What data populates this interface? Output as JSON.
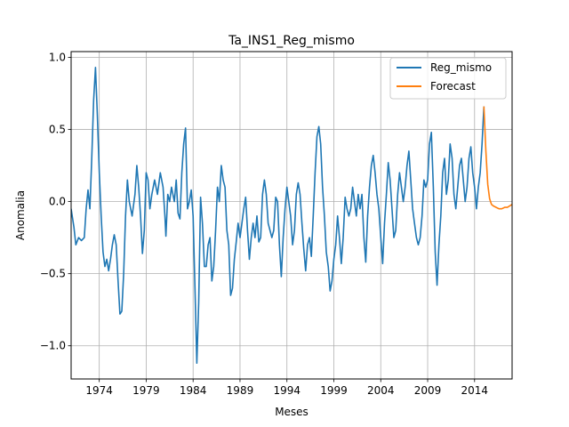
{
  "chart_data": {
    "type": "line",
    "title": "Ta_INS1_Reg_mismo",
    "xlabel": "Meses",
    "ylabel": "Anomalia",
    "xlim": [
      1971.0,
      2018.0
    ],
    "ylim": [
      -1.23,
      1.04
    ],
    "x_ticks": [
      1974,
      1979,
      1984,
      1989,
      1994,
      1999,
      2004,
      2009,
      2014
    ],
    "x_tick_labels": [
      "1974",
      "1979",
      "1984",
      "1989",
      "1994",
      "1999",
      "2004",
      "2009",
      "2014"
    ],
    "y_ticks": [
      -1.0,
      -0.5,
      0.0,
      0.5,
      1.0
    ],
    "y_tick_labels": [
      "−1.0",
      "−0.5",
      "0.0",
      "0.5",
      "1.0"
    ],
    "grid": true,
    "legend_position": "top-right",
    "series": [
      {
        "name": "Reg_mismo",
        "color": "#1f77b4",
        "points": [
          [
            1971.0,
            -0.05
          ],
          [
            1971.3,
            -0.18
          ],
          [
            1971.5,
            -0.3
          ],
          [
            1971.8,
            -0.25
          ],
          [
            1972.1,
            -0.27
          ],
          [
            1972.4,
            -0.25
          ],
          [
            1972.6,
            -0.05
          ],
          [
            1972.8,
            0.08
          ],
          [
            1973.0,
            -0.05
          ],
          [
            1973.2,
            0.3
          ],
          [
            1973.4,
            0.7
          ],
          [
            1973.6,
            0.93
          ],
          [
            1973.8,
            0.6
          ],
          [
            1974.0,
            0.2
          ],
          [
            1974.2,
            -0.1
          ],
          [
            1974.4,
            -0.35
          ],
          [
            1974.6,
            -0.45
          ],
          [
            1974.8,
            -0.4
          ],
          [
            1975.0,
            -0.48
          ],
          [
            1975.2,
            -0.4
          ],
          [
            1975.4,
            -0.3
          ],
          [
            1975.6,
            -0.23
          ],
          [
            1975.8,
            -0.3
          ],
          [
            1976.0,
            -0.55
          ],
          [
            1976.2,
            -0.78
          ],
          [
            1976.4,
            -0.76
          ],
          [
            1976.6,
            -0.5
          ],
          [
            1976.8,
            -0.1
          ],
          [
            1977.0,
            0.15
          ],
          [
            1977.2,
            0.0
          ],
          [
            1977.5,
            -0.1
          ],
          [
            1977.8,
            0.05
          ],
          [
            1978.0,
            0.25
          ],
          [
            1978.2,
            0.1
          ],
          [
            1978.4,
            -0.1
          ],
          [
            1978.6,
            -0.36
          ],
          [
            1978.8,
            -0.2
          ],
          [
            1979.0,
            0.2
          ],
          [
            1979.2,
            0.15
          ],
          [
            1979.4,
            -0.05
          ],
          [
            1979.6,
            0.05
          ],
          [
            1979.9,
            0.15
          ],
          [
            1980.2,
            0.05
          ],
          [
            1980.5,
            0.2
          ],
          [
            1980.8,
            0.1
          ],
          [
            1981.0,
            -0.1
          ],
          [
            1981.1,
            -0.24
          ],
          [
            1981.3,
            0.05
          ],
          [
            1981.5,
            0.0
          ],
          [
            1981.7,
            0.1
          ],
          [
            1982.0,
            0.0
          ],
          [
            1982.2,
            0.15
          ],
          [
            1982.4,
            -0.08
          ],
          [
            1982.6,
            -0.12
          ],
          [
            1982.8,
            0.2
          ],
          [
            1983.0,
            0.4
          ],
          [
            1983.2,
            0.51
          ],
          [
            1983.4,
            -0.05
          ],
          [
            1983.6,
            0.0
          ],
          [
            1983.8,
            0.08
          ],
          [
            1984.0,
            -0.1
          ],
          [
            1984.2,
            -0.6
          ],
          [
            1984.4,
            -1.12
          ],
          [
            1984.6,
            -0.7
          ],
          [
            1984.8,
            0.03
          ],
          [
            1985.0,
            -0.15
          ],
          [
            1985.2,
            -0.45
          ],
          [
            1985.4,
            -0.45
          ],
          [
            1985.6,
            -0.3
          ],
          [
            1985.8,
            -0.25
          ],
          [
            1986.0,
            -0.55
          ],
          [
            1986.2,
            -0.45
          ],
          [
            1986.4,
            -0.2
          ],
          [
            1986.6,
            0.1
          ],
          [
            1986.8,
            0.0
          ],
          [
            1987.0,
            0.25
          ],
          [
            1987.2,
            0.15
          ],
          [
            1987.4,
            0.1
          ],
          [
            1987.6,
            -0.2
          ],
          [
            1987.8,
            -0.3
          ],
          [
            1988.0,
            -0.65
          ],
          [
            1988.2,
            -0.6
          ],
          [
            1988.4,
            -0.4
          ],
          [
            1988.6,
            -0.28
          ],
          [
            1988.8,
            -0.15
          ],
          [
            1989.0,
            -0.25
          ],
          [
            1989.2,
            -0.15
          ],
          [
            1989.4,
            -0.05
          ],
          [
            1989.6,
            0.03
          ],
          [
            1989.8,
            -0.2
          ],
          [
            1990.0,
            -0.4
          ],
          [
            1990.2,
            -0.25
          ],
          [
            1990.4,
            -0.15
          ],
          [
            1990.6,
            -0.25
          ],
          [
            1990.8,
            -0.1
          ],
          [
            1991.0,
            -0.28
          ],
          [
            1991.2,
            -0.25
          ],
          [
            1991.4,
            0.05
          ],
          [
            1991.6,
            0.15
          ],
          [
            1991.8,
            0.05
          ],
          [
            1992.0,
            -0.15
          ],
          [
            1992.2,
            -0.2
          ],
          [
            1992.4,
            -0.25
          ],
          [
            1992.6,
            -0.2
          ],
          [
            1992.8,
            0.03
          ],
          [
            1993.0,
            0.0
          ],
          [
            1993.2,
            -0.3
          ],
          [
            1993.4,
            -0.52
          ],
          [
            1993.6,
            -0.25
          ],
          [
            1993.8,
            -0.05
          ],
          [
            1994.0,
            0.1
          ],
          [
            1994.2,
            0.0
          ],
          [
            1994.4,
            -0.1
          ],
          [
            1994.6,
            -0.3
          ],
          [
            1994.8,
            -0.2
          ],
          [
            1995.0,
            0.05
          ],
          [
            1995.2,
            0.13
          ],
          [
            1995.4,
            0.05
          ],
          [
            1995.6,
            -0.15
          ],
          [
            1995.8,
            -0.33
          ],
          [
            1996.0,
            -0.48
          ],
          [
            1996.2,
            -0.3
          ],
          [
            1996.4,
            -0.25
          ],
          [
            1996.6,
            -0.38
          ],
          [
            1996.8,
            -0.1
          ],
          [
            1997.0,
            0.2
          ],
          [
            1997.2,
            0.45
          ],
          [
            1997.4,
            0.52
          ],
          [
            1997.6,
            0.4
          ],
          [
            1997.8,
            0.1
          ],
          [
            1998.0,
            -0.1
          ],
          [
            1998.2,
            -0.35
          ],
          [
            1998.4,
            -0.45
          ],
          [
            1998.6,
            -0.62
          ],
          [
            1998.8,
            -0.55
          ],
          [
            1999.0,
            -0.4
          ],
          [
            1999.2,
            -0.3
          ],
          [
            1999.4,
            -0.1
          ],
          [
            1999.6,
            -0.25
          ],
          [
            1999.8,
            -0.43
          ],
          [
            2000.0,
            -0.25
          ],
          [
            2000.2,
            0.03
          ],
          [
            2000.4,
            -0.05
          ],
          [
            2000.6,
            -0.1
          ],
          [
            2000.8,
            -0.05
          ],
          [
            2001.0,
            0.1
          ],
          [
            2001.2,
            0.0
          ],
          [
            2001.4,
            -0.1
          ],
          [
            2001.6,
            0.05
          ],
          [
            2001.8,
            -0.05
          ],
          [
            2002.0,
            0.05
          ],
          [
            2002.2,
            -0.25
          ],
          [
            2002.4,
            -0.42
          ],
          [
            2002.6,
            -0.1
          ],
          [
            2002.8,
            0.1
          ],
          [
            2003.0,
            0.25
          ],
          [
            2003.2,
            0.32
          ],
          [
            2003.4,
            0.2
          ],
          [
            2003.6,
            0.05
          ],
          [
            2003.8,
            -0.05
          ],
          [
            2004.0,
            -0.25
          ],
          [
            2004.2,
            -0.43
          ],
          [
            2004.4,
            -0.15
          ],
          [
            2004.6,
            0.05
          ],
          [
            2004.8,
            0.27
          ],
          [
            2005.0,
            0.15
          ],
          [
            2005.2,
            -0.05
          ],
          [
            2005.4,
            -0.25
          ],
          [
            2005.6,
            -0.2
          ],
          [
            2005.8,
            0.05
          ],
          [
            2006.0,
            0.2
          ],
          [
            2006.2,
            0.1
          ],
          [
            2006.4,
            0.0
          ],
          [
            2006.6,
            0.1
          ],
          [
            2006.8,
            0.25
          ],
          [
            2007.0,
            0.35
          ],
          [
            2007.2,
            0.15
          ],
          [
            2007.4,
            -0.05
          ],
          [
            2007.6,
            -0.15
          ],
          [
            2007.8,
            -0.25
          ],
          [
            2008.0,
            -0.3
          ],
          [
            2008.2,
            -0.25
          ],
          [
            2008.4,
            -0.1
          ],
          [
            2008.6,
            0.15
          ],
          [
            2008.8,
            0.1
          ],
          [
            2009.0,
            0.15
          ],
          [
            2009.2,
            0.4
          ],
          [
            2009.4,
            0.48
          ],
          [
            2009.6,
            0.1
          ],
          [
            2009.8,
            -0.35
          ],
          [
            2010.0,
            -0.58
          ],
          [
            2010.2,
            -0.3
          ],
          [
            2010.4,
            -0.1
          ],
          [
            2010.6,
            0.2
          ],
          [
            2010.8,
            0.3
          ],
          [
            2011.0,
            0.05
          ],
          [
            2011.2,
            0.15
          ],
          [
            2011.4,
            0.4
          ],
          [
            2011.6,
            0.3
          ],
          [
            2011.8,
            0.05
          ],
          [
            2012.0,
            -0.05
          ],
          [
            2012.2,
            0.1
          ],
          [
            2012.4,
            0.25
          ],
          [
            2012.6,
            0.3
          ],
          [
            2012.8,
            0.15
          ],
          [
            2013.0,
            0.0
          ],
          [
            2013.2,
            0.1
          ],
          [
            2013.4,
            0.3
          ],
          [
            2013.6,
            0.38
          ],
          [
            2013.8,
            0.2
          ],
          [
            2014.0,
            0.1
          ],
          [
            2014.2,
            -0.05
          ],
          [
            2014.4,
            0.1
          ],
          [
            2014.6,
            0.2
          ],
          [
            2014.8,
            0.4
          ],
          [
            2015.0,
            0.66
          ]
        ]
      },
      {
        "name": "Forecast",
        "color": "#ff7f0e",
        "points": [
          [
            2015.0,
            0.66
          ],
          [
            2015.2,
            0.35
          ],
          [
            2015.4,
            0.12
          ],
          [
            2015.6,
            0.02
          ],
          [
            2015.8,
            -0.02
          ],
          [
            2016.0,
            -0.03
          ],
          [
            2016.3,
            -0.04
          ],
          [
            2016.6,
            -0.05
          ],
          [
            2016.9,
            -0.05
          ],
          [
            2017.2,
            -0.04
          ],
          [
            2017.5,
            -0.04
          ],
          [
            2018.0,
            -0.02
          ]
        ]
      }
    ]
  }
}
